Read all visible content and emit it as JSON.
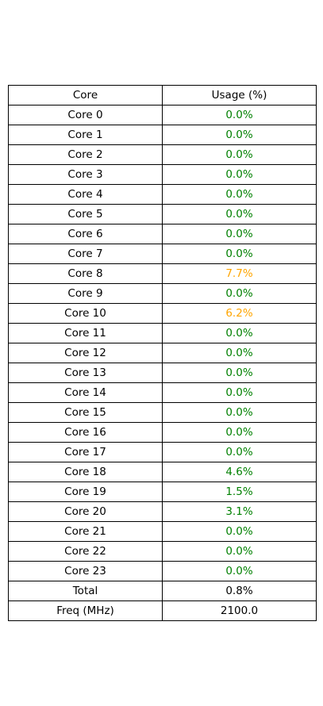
{
  "colors": {
    "low": "#008000",
    "medium": "#ffa500",
    "neutral": "#000000",
    "border": "#000000"
  },
  "table": {
    "headers": [
      "Core",
      "Usage (%)"
    ],
    "rows": [
      {
        "label": "Core 0",
        "value": "0.0%",
        "level": "low"
      },
      {
        "label": "Core 1",
        "value": "0.0%",
        "level": "low"
      },
      {
        "label": "Core 2",
        "value": "0.0%",
        "level": "low"
      },
      {
        "label": "Core 3",
        "value": "0.0%",
        "level": "low"
      },
      {
        "label": "Core 4",
        "value": "0.0%",
        "level": "low"
      },
      {
        "label": "Core 5",
        "value": "0.0%",
        "level": "low"
      },
      {
        "label": "Core 6",
        "value": "0.0%",
        "level": "low"
      },
      {
        "label": "Core 7",
        "value": "0.0%",
        "level": "low"
      },
      {
        "label": "Core 8",
        "value": "7.7%",
        "level": "medium"
      },
      {
        "label": "Core 9",
        "value": "0.0%",
        "level": "low"
      },
      {
        "label": "Core 10",
        "value": "6.2%",
        "level": "medium"
      },
      {
        "label": "Core 11",
        "value": "0.0%",
        "level": "low"
      },
      {
        "label": "Core 12",
        "value": "0.0%",
        "level": "low"
      },
      {
        "label": "Core 13",
        "value": "0.0%",
        "level": "low"
      },
      {
        "label": "Core 14",
        "value": "0.0%",
        "level": "low"
      },
      {
        "label": "Core 15",
        "value": "0.0%",
        "level": "low"
      },
      {
        "label": "Core 16",
        "value": "0.0%",
        "level": "low"
      },
      {
        "label": "Core 17",
        "value": "0.0%",
        "level": "low"
      },
      {
        "label": "Core 18",
        "value": "4.6%",
        "level": "low"
      },
      {
        "label": "Core 19",
        "value": "1.5%",
        "level": "low"
      },
      {
        "label": "Core 20",
        "value": "3.1%",
        "level": "low"
      },
      {
        "label": "Core 21",
        "value": "0.0%",
        "level": "low"
      },
      {
        "label": "Core 22",
        "value": "0.0%",
        "level": "low"
      },
      {
        "label": "Core 23",
        "value": "0.0%",
        "level": "low"
      }
    ],
    "total": {
      "label": "Total",
      "value": "0.8%",
      "level": "neutral"
    },
    "freq": {
      "label": "Freq (MHz)",
      "value": "2100.0",
      "level": "neutral"
    }
  }
}
